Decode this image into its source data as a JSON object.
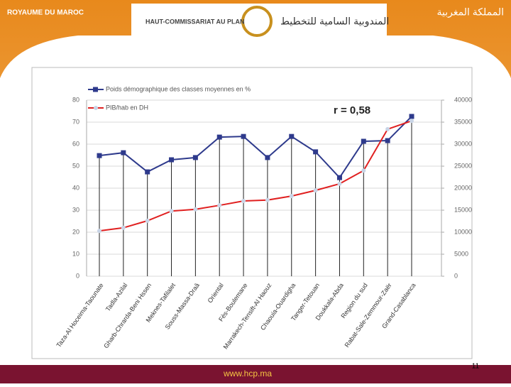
{
  "header": {
    "left": "ROYAUME DU MAROC",
    "org": "HAUT-COMMISSARIAT AU PLAN",
    "org_arabic": "المندوبية السامية للتخطيط",
    "right": "المملكة المغربية"
  },
  "footer": {
    "url": "www.hcp.ma",
    "page": "11"
  },
  "chart_data": {
    "type": "line",
    "annotation": "r = 0,58",
    "categories": [
      "Taza-Al Hoceima-Taounate",
      "Tadla-Azilal",
      "Gharb-Chrarda-Beni Hssen",
      "Meknes-Tafilalet",
      "Souss-Massa-Draâ",
      "Oriental",
      "Fès-Boulemane",
      "Marrakech-Tensift-Al Haouz",
      "Chaouia-Ouardigha",
      "Tanger-Tetouan",
      "Doukkala-Abda",
      "Region du sud",
      "Rabat-Sale-Zemmour-Zaër",
      "Grand-Casablanca"
    ],
    "series": [
      {
        "name": "Poids démographique des classes moyennes en %",
        "color": "#2e3a8c",
        "values": [
          54.8,
          56.1,
          47.4,
          52.9,
          53.9,
          63.2,
          63.5,
          53.9,
          63.5,
          56.5,
          44.8,
          61.3,
          61.6,
          72.6
        ]
      },
      {
        "name": "PIB/hab en DH",
        "color": "#e02020",
        "axis": "y2",
        "values": [
          10300,
          11000,
          12600,
          14800,
          15200,
          16100,
          17100,
          17300,
          18200,
          19500,
          21000,
          24000,
          33400,
          35300
        ]
      }
    ],
    "ylim": [
      0,
      80
    ],
    "yticks": [
      0,
      10,
      20,
      30,
      40,
      50,
      60,
      70,
      80
    ],
    "y2lim": [
      0,
      40000
    ],
    "y2ticks": [
      0,
      5000,
      10000,
      15000,
      20000,
      25000,
      30000,
      35000,
      40000
    ],
    "grid": true
  }
}
